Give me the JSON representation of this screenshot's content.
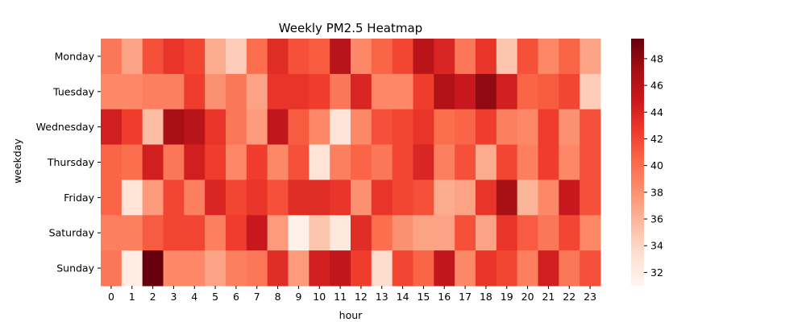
{
  "chart_data": {
    "type": "heatmap",
    "title": "Weekly PM2.5 Heatmap",
    "xlabel": "hour",
    "ylabel": "weekday",
    "x_categories": [
      "0",
      "1",
      "2",
      "3",
      "4",
      "5",
      "6",
      "7",
      "8",
      "9",
      "10",
      "11",
      "12",
      "13",
      "14",
      "15",
      "16",
      "17",
      "18",
      "19",
      "20",
      "21",
      "22",
      "23"
    ],
    "y_categories": [
      "Monday",
      "Tuesday",
      "Wednesday",
      "Thursday",
      "Friday",
      "Saturday",
      "Sunday"
    ],
    "values": [
      [
        39.5,
        37.0,
        41.5,
        43.0,
        42.0,
        36.5,
        34.5,
        40.0,
        43.5,
        41.5,
        41.0,
        46.0,
        38.5,
        40.5,
        42.0,
        46.0,
        44.0,
        39.5,
        43.0,
        35.0,
        41.5,
        38.5,
        40.5,
        37.0
      ],
      [
        38.5,
        38.5,
        39.0,
        39.0,
        42.5,
        38.0,
        39.5,
        37.0,
        43.0,
        43.0,
        42.5,
        39.5,
        44.0,
        38.5,
        38.5,
        42.5,
        46.5,
        45.0,
        48.0,
        44.5,
        40.5,
        41.0,
        42.0,
        34.5
      ],
      [
        44.5,
        42.5,
        35.5,
        47.0,
        46.0,
        43.0,
        39.5,
        37.5,
        45.5,
        41.0,
        38.5,
        33.0,
        38.5,
        41.5,
        42.0,
        43.0,
        40.0,
        40.5,
        42.5,
        39.0,
        38.5,
        42.5,
        38.0,
        41.5
      ],
      [
        40.5,
        40.0,
        44.5,
        39.5,
        44.5,
        42.5,
        38.5,
        42.5,
        38.5,
        41.5,
        33.0,
        39.0,
        40.5,
        39.5,
        42.0,
        44.0,
        39.0,
        41.5,
        36.5,
        42.0,
        39.0,
        42.5,
        38.5,
        41.5
      ],
      [
        40.5,
        33.0,
        37.5,
        42.0,
        39.0,
        44.0,
        42.0,
        43.0,
        41.5,
        43.5,
        43.5,
        43.0,
        38.0,
        43.0,
        42.0,
        41.5,
        36.5,
        37.0,
        43.0,
        47.0,
        36.0,
        38.5,
        45.0,
        41.5
      ],
      [
        39.0,
        39.0,
        41.0,
        42.0,
        42.0,
        39.0,
        42.5,
        45.0,
        37.5,
        31.5,
        35.0,
        32.5,
        43.5,
        40.0,
        38.0,
        37.0,
        37.0,
        41.5,
        37.0,
        43.0,
        41.0,
        39.5,
        42.0,
        38.5
      ],
      [
        39.5,
        32.0,
        49.5,
        38.5,
        38.5,
        37.0,
        39.0,
        39.5,
        43.5,
        37.5,
        44.5,
        45.5,
        42.5,
        33.5,
        42.0,
        40.5,
        45.5,
        38.5,
        43.0,
        42.0,
        39.0,
        44.5,
        39.5,
        41.5
      ]
    ],
    "vmin": 31,
    "vmax": 49.5,
    "colorbar_ticks": [
      32,
      34,
      36,
      38,
      40,
      42,
      44,
      46,
      48
    ],
    "colormap": "Reds"
  }
}
